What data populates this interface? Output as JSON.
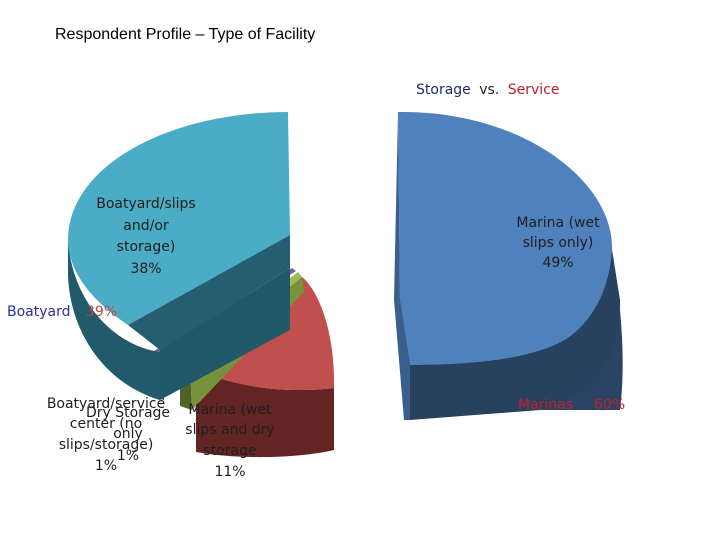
{
  "chart_data": {
    "type": "pie",
    "title": "Respondent Profile – Type of Facility",
    "subtitle_parts": {
      "storage": "Storage",
      "vs": "vs.",
      "service": "Service"
    },
    "slices": [
      {
        "label": "Marina (wet slips only)",
        "value": 49,
        "value_label": "49%",
        "color": "#4f81bd"
      },
      {
        "label": "Marina (wet slips and dry storage",
        "value": 11,
        "value_label": "11%",
        "color": "#c0504d"
      },
      {
        "label": "Dry Storage only",
        "value": 1,
        "value_label": "1%",
        "color": "#9bbb59"
      },
      {
        "label": "Boatyard/service center (no slips/storage)",
        "value": 1,
        "value_label": "1%",
        "color": "#8064a2"
      },
      {
        "label": "Boatyard/slips and/or storage)",
        "value": 38,
        "value_label": "38%",
        "color": "#4bacc6"
      }
    ],
    "group_labels": [
      {
        "name": "Boatyard",
        "value_label": "39%"
      },
      {
        "name": "Marinas",
        "value_label": "60%"
      }
    ]
  }
}
